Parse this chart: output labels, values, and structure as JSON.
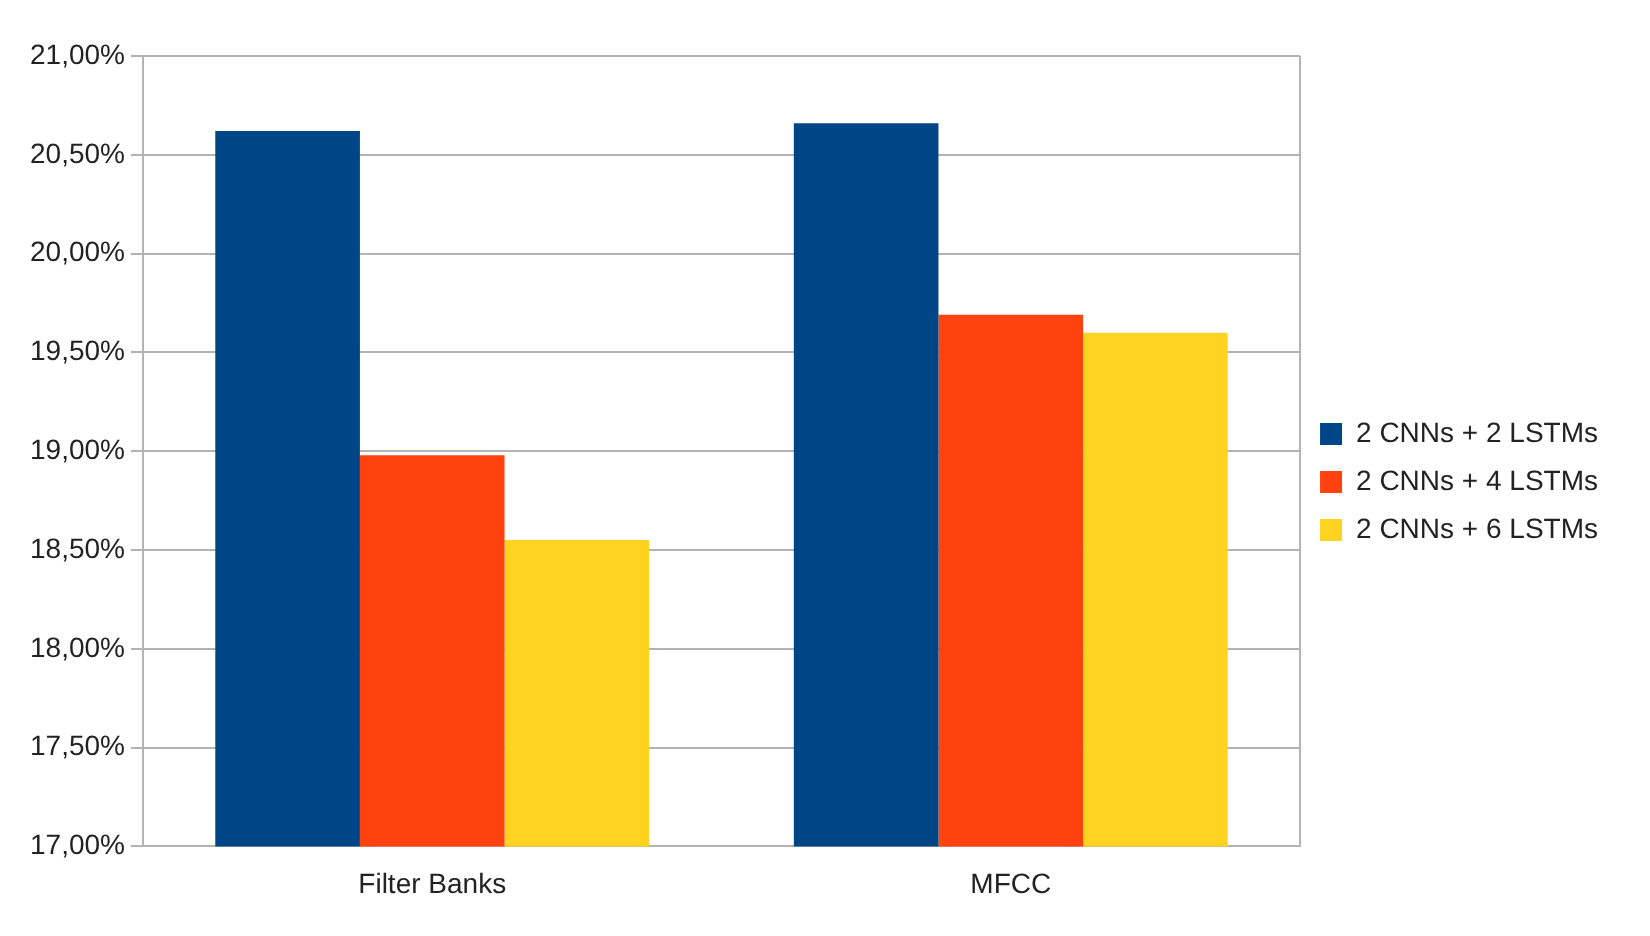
{
  "chart_data": {
    "type": "bar",
    "categories": [
      "Filter Banks",
      "MFCC"
    ],
    "series": [
      {
        "name": "2 CNNs + 2 LSTMs",
        "color": "#004586",
        "values": [
          20.62,
          20.66
        ]
      },
      {
        "name": "2 CNNs + 4 LSTMs",
        "color": "#ff420e",
        "values": [
          18.98,
          19.69
        ]
      },
      {
        "name": "2 CNNs + 6 LSTMs",
        "color": "#ffd320",
        "values": [
          18.55,
          19.6
        ]
      }
    ],
    "ylim": [
      17,
      21
    ],
    "yticks": [
      {
        "value": 17,
        "label": "17,00%"
      },
      {
        "value": 17.5,
        "label": "17,50%"
      },
      {
        "value": 18,
        "label": "18,00%"
      },
      {
        "value": 18.5,
        "label": "18,50%"
      },
      {
        "value": 19,
        "label": "19,00%"
      },
      {
        "value": 19.5,
        "label": "19,50%"
      },
      {
        "value": 20,
        "label": "20,00%"
      },
      {
        "value": 20.5,
        "label": "20,50%"
      },
      {
        "value": 21,
        "label": "21,00%"
      }
    ],
    "grid": "y",
    "legend": "right"
  }
}
